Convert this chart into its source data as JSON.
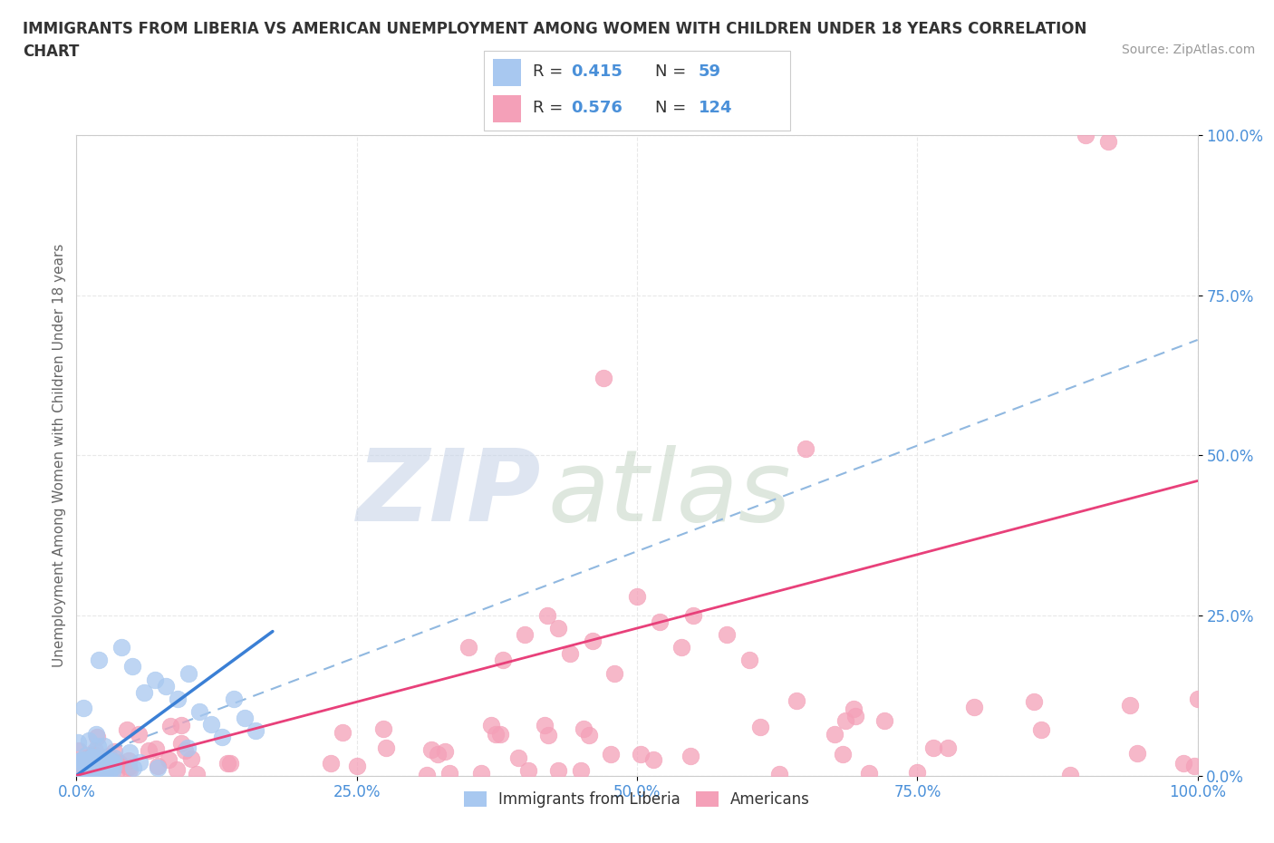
{
  "title_line1": "IMMIGRANTS FROM LIBERIA VS AMERICAN UNEMPLOYMENT AMONG WOMEN WITH CHILDREN UNDER 18 YEARS CORRELATION",
  "title_line2": "CHART",
  "source": "Source: ZipAtlas.com",
  "ylabel": "Unemployment Among Women with Children Under 18 years",
  "xlim": [
    0,
    1.0
  ],
  "ylim": [
    0,
    1.0
  ],
  "xtick_labels": [
    "0.0%",
    "25.0%",
    "50.0%",
    "75.0%",
    "100.0%"
  ],
  "ytick_labels": [
    "0.0%",
    "25.0%",
    "50.0%",
    "75.0%",
    "100.0%"
  ],
  "liberia_color": "#a8c8f0",
  "american_color": "#f4a0b8",
  "liberia_line_color": "#3a7fd5",
  "american_line_color": "#e8407a",
  "dashed_line_color": "#90b8e0",
  "watermark_zip": "ZIP",
  "watermark_atlas": "atlas",
  "watermark_color_zip": "#c8d4e8",
  "watermark_color_atlas": "#c8d8c8",
  "legend_label1": "Immigrants from Liberia",
  "legend_label2": "Americans",
  "liberia_R": 0.415,
  "liberia_N": 59,
  "american_R": 0.576,
  "american_N": 124,
  "background_color": "#ffffff",
  "grid_color": "#e8e8e8",
  "axis_color": "#cccccc",
  "tick_color": "#4a90d9",
  "title_color": "#333333",
  "ylabel_color": "#666666",
  "source_color": "#999999",
  "liberia_trend_x": [
    0.0,
    0.175
  ],
  "liberia_trend_y": [
    0.0,
    0.225
  ],
  "american_trend_x": [
    0.0,
    1.0
  ],
  "american_trend_y": [
    0.0,
    0.46
  ],
  "dashed_trend_x": [
    0.0,
    1.0
  ],
  "dashed_trend_y": [
    0.02,
    0.68
  ]
}
